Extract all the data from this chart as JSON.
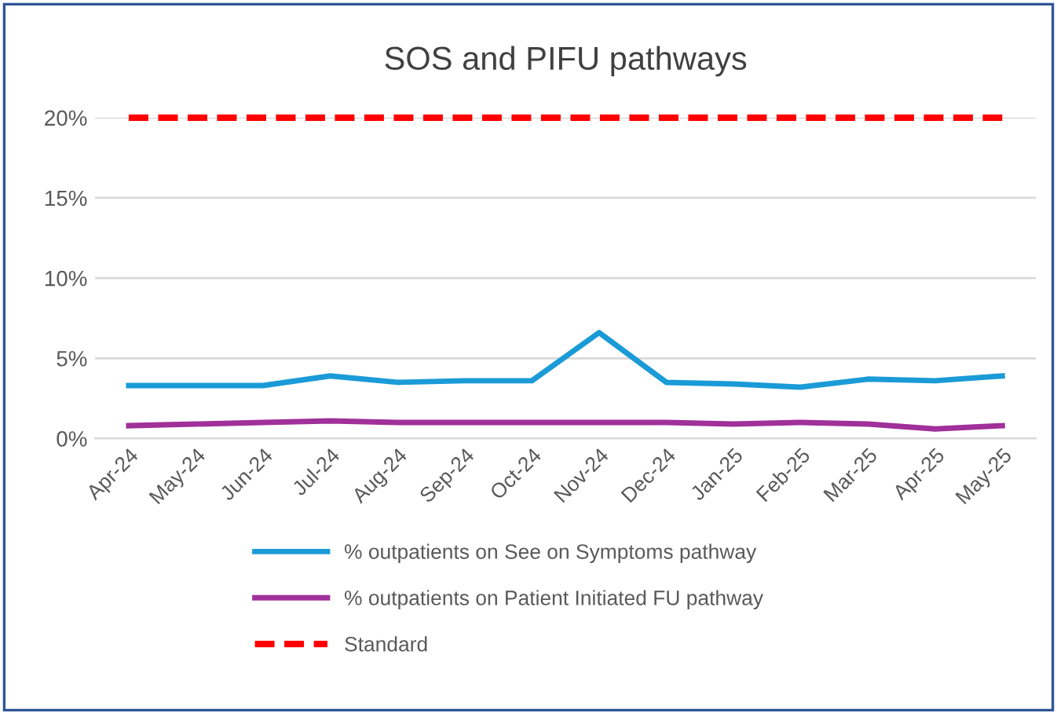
{
  "chart_data": {
    "type": "line",
    "title": "SOS and PIFU pathways",
    "categories": [
      "Apr-24",
      "May-24",
      "Jun-24",
      "Jul-24",
      "Aug-24",
      "Sep-24",
      "Oct-24",
      "Nov-24",
      "Dec-24",
      "Jan-25",
      "Feb-25",
      "Mar-25",
      "Apr-25",
      "May-25"
    ],
    "series": [
      {
        "name": "% outpatients on See on Symptoms pathway",
        "color": "#1a9bd7",
        "line_style": "solid",
        "values": [
          3.3,
          3.3,
          3.3,
          3.9,
          3.5,
          3.6,
          3.6,
          6.6,
          3.5,
          3.4,
          3.2,
          3.7,
          3.6,
          3.9
        ]
      },
      {
        "name": "% outpatients on Patient Initiated FU pathway",
        "color": "#a0309a",
        "line_style": "solid",
        "values": [
          0.8,
          0.9,
          1.0,
          1.1,
          1.0,
          1.0,
          1.0,
          1.0,
          1.0,
          0.9,
          1.0,
          0.9,
          0.6,
          0.8
        ]
      },
      {
        "name": "Standard",
        "color": "#ff0000",
        "line_style": "dashed",
        "values": [
          20,
          20,
          20,
          20,
          20,
          20,
          20,
          20,
          20,
          20,
          20,
          20,
          20,
          20
        ]
      }
    ],
    "ylim": [
      0,
      20
    ],
    "yticks": [
      {
        "value": 0,
        "label": "0%"
      },
      {
        "value": 5,
        "label": "5%"
      },
      {
        "value": 10,
        "label": "10%"
      },
      {
        "value": 15,
        "label": "15%"
      },
      {
        "value": 20,
        "label": "20%"
      }
    ],
    "grid": "y",
    "legend": "bottom",
    "marker": "none"
  }
}
